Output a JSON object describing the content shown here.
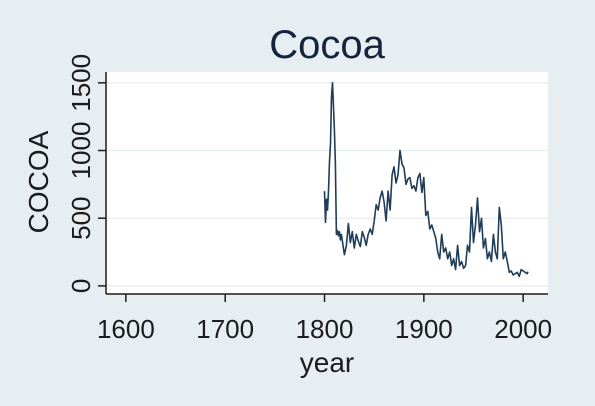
{
  "chart_data": {
    "type": "line",
    "title": "Cocoa",
    "xlabel": "year",
    "ylabel": "COCOA",
    "xlim": [
      1580,
      2025
    ],
    "ylim": [
      -60,
      1580
    ],
    "x_ticks": [
      1600,
      1700,
      1800,
      1900,
      2000
    ],
    "y_ticks": [
      0,
      500,
      1000,
      1500
    ],
    "x_tick_labels": [
      "1600",
      "1700",
      "1800",
      "1900",
      "2000"
    ],
    "y_tick_labels": [
      "0",
      "500",
      "1000",
      "1500"
    ],
    "grid": "horizontal",
    "colors": {
      "background": "#e7eef2",
      "plot_area": "#ffffff",
      "line": "#1f3d59",
      "grid": "#e3ebef",
      "text": "#1c1c1c",
      "title": "#16233f"
    },
    "series": [
      {
        "x": [
          1800,
          1801,
          1802,
          1803,
          1804,
          1805,
          1806,
          1807,
          1808,
          1809,
          1810,
          1811,
          1812,
          1813,
          1814,
          1815,
          1816,
          1817,
          1818,
          1819,
          1820,
          1822,
          1824,
          1826,
          1828,
          1830,
          1832,
          1834,
          1836,
          1838,
          1840,
          1842,
          1844,
          1846,
          1848,
          1850,
          1852,
          1854,
          1856,
          1858,
          1860,
          1862,
          1864,
          1866,
          1868,
          1870,
          1872,
          1874,
          1876,
          1878,
          1880,
          1882,
          1884,
          1886,
          1888,
          1890,
          1892,
          1894,
          1896,
          1898,
          1900,
          1902,
          1904,
          1906,
          1908,
          1910,
          1912,
          1914,
          1916,
          1918,
          1920,
          1922,
          1924,
          1926,
          1928,
          1930,
          1932,
          1934,
          1936,
          1938,
          1940,
          1942,
          1944,
          1946,
          1948,
          1950,
          1952,
          1954,
          1956,
          1958,
          1960,
          1962,
          1964,
          1966,
          1968,
          1970,
          1972,
          1974,
          1976,
          1978,
          1980,
          1982,
          1984,
          1986,
          1988,
          1990,
          1992,
          1994,
          1996,
          1998,
          2000,
          2002,
          2004,
          2005
        ],
        "y": [
          700,
          470,
          640,
          560,
          700,
          920,
          1050,
          1400,
          1500,
          1320,
          1150,
          900,
          380,
          410,
          370,
          400,
          340,
          380,
          330,
          280,
          230,
          300,
          460,
          320,
          400,
          280,
          380,
          330,
          290,
          400,
          360,
          300,
          380,
          420,
          380,
          480,
          600,
          560,
          650,
          700,
          620,
          480,
          700,
          560,
          820,
          880,
          760,
          820,
          1000,
          900,
          870,
          750,
          790,
          800,
          720,
          740,
          700,
          800,
          830,
          690,
          800,
          520,
          550,
          420,
          450,
          400,
          350,
          250,
          200,
          380,
          250,
          280,
          200,
          250,
          150,
          200,
          120,
          300,
          150,
          180,
          130,
          150,
          300,
          250,
          580,
          320,
          450,
          650,
          400,
          500,
          280,
          350,
          200,
          250,
          180,
          380,
          250,
          200,
          580,
          450,
          200,
          250,
          180,
          100,
          110,
          80,
          90,
          100,
          70,
          120,
          110,
          100,
          90,
          105
        ]
      }
    ]
  }
}
